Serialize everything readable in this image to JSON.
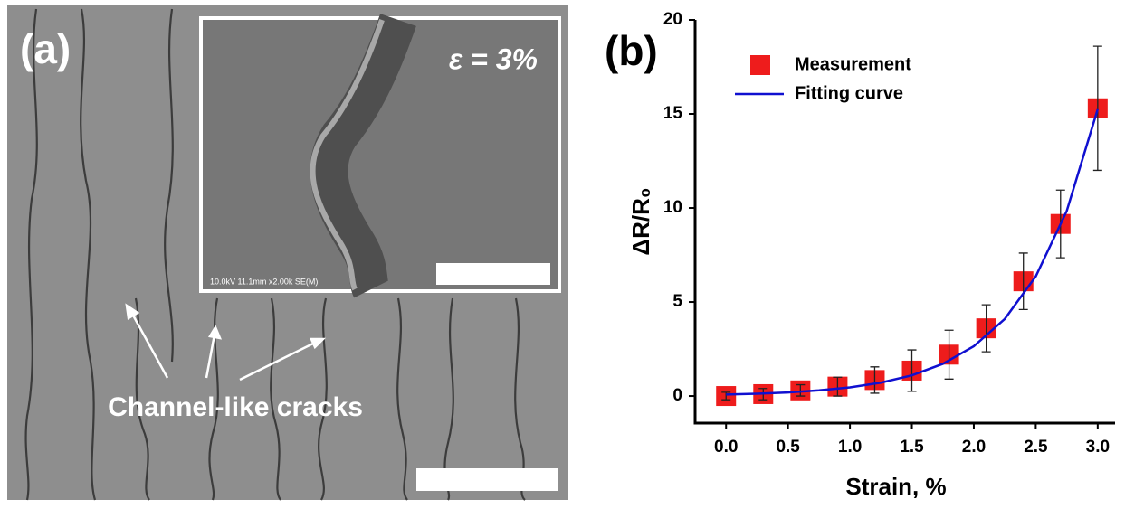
{
  "image_panel": {
    "label": "(a)",
    "inset_label": "ε = 3%",
    "inset_caption": "10.0kV 11.1mm x2.00k SE(M)",
    "annotation": "Channel-like cracks"
  },
  "chart_data": {
    "type": "scatter",
    "panel_label": "(b)",
    "x_label": "Strain, %",
    "y_label": "ΔR/R₀",
    "xlim": [
      -0.25,
      3.14
    ],
    "ylim": [
      -1.44,
      20
    ],
    "xticks": [
      {
        "value": 0,
        "label": "0.0"
      },
      0.5,
      {
        "value": 1,
        "label": "1.0"
      },
      1.5,
      {
        "value": 2,
        "label": "2.0"
      },
      2.5,
      {
        "value": 3,
        "label": "3.0"
      }
    ],
    "yticks": [
      0,
      5,
      10,
      15,
      20
    ],
    "legend": "top-left",
    "series": [
      {
        "name": "Measurement",
        "color": "#ee1c1c",
        "marker": "square",
        "x": [
          0,
          0.3,
          0.6,
          0.9,
          1.2,
          1.5,
          1.8,
          2.1,
          2.4,
          2.7,
          3.0
        ],
        "values": [
          0,
          0.1,
          0.3,
          0.5,
          0.85,
          1.35,
          2.2,
          3.6,
          6.1,
          9.15,
          15.3
        ],
        "errors": [
          0.2,
          0.3,
          0.3,
          0.5,
          0.7,
          1.1,
          1.3,
          1.25,
          1.5,
          1.8,
          3.3
        ]
      },
      {
        "name": "Fitting curve",
        "color": "#1010d0",
        "marker": "line",
        "x": [
          0,
          0.25,
          0.5,
          0.75,
          1,
          1.25,
          1.5,
          1.75,
          2,
          2.25,
          2.5,
          2.75,
          3.0
        ],
        "values": [
          0.08,
          0.12,
          0.19,
          0.3,
          0.46,
          0.71,
          1.1,
          1.71,
          2.65,
          4.1,
          6.36,
          9.84,
          15.25
        ]
      }
    ]
  }
}
